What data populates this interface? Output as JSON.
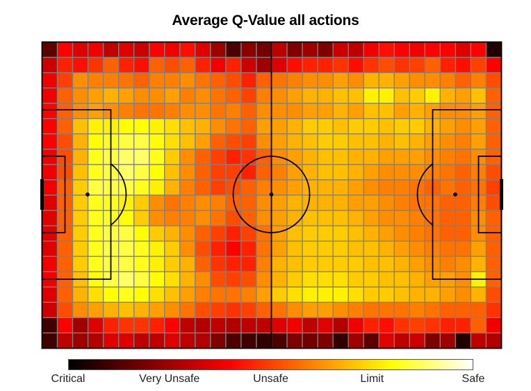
{
  "chart_data": {
    "type": "heatmap",
    "title": "Average Q-Value all actions",
    "grid": {
      "rows": 20,
      "cols": 30
    },
    "value_range": [
      0,
      1
    ],
    "colormap": [
      "#000000",
      "#7f0000",
      "#ff0000",
      "#ff8000",
      "#ffff00",
      "#ffffff"
    ],
    "colorbar_labels": [
      "Critical",
      "Very Unsafe",
      "Unsafe",
      "Limit",
      "Safe"
    ],
    "colorbar_ticks": [
      0,
      0.25,
      0.5,
      0.75,
      1
    ],
    "values": [
      [
        0.15,
        0.4,
        0.35,
        0.38,
        0.3,
        0.35,
        0.32,
        0.4,
        0.38,
        0.42,
        0.35,
        0.25,
        0.12,
        0.22,
        0.18,
        0.3,
        0.2,
        0.25,
        0.2,
        0.32,
        0.3,
        0.38,
        0.42,
        0.4,
        0.38,
        0.4,
        0.4,
        0.35,
        0.4,
        0.05
      ],
      [
        0.32,
        0.45,
        0.42,
        0.48,
        0.55,
        0.45,
        0.42,
        0.55,
        0.52,
        0.55,
        0.45,
        0.38,
        0.45,
        0.32,
        0.25,
        0.35,
        0.42,
        0.45,
        0.45,
        0.48,
        0.42,
        0.48,
        0.52,
        0.48,
        0.5,
        0.55,
        0.45,
        0.42,
        0.5,
        0.4
      ],
      [
        0.38,
        0.5,
        0.62,
        0.6,
        0.6,
        0.58,
        0.55,
        0.6,
        0.6,
        0.62,
        0.58,
        0.55,
        0.52,
        0.45,
        0.55,
        0.58,
        0.6,
        0.62,
        0.62,
        0.65,
        0.62,
        0.68,
        0.68,
        0.65,
        0.62,
        0.62,
        0.6,
        0.55,
        0.6,
        0.52
      ],
      [
        0.38,
        0.55,
        0.62,
        0.65,
        0.68,
        0.65,
        0.62,
        0.62,
        0.65,
        0.6,
        0.62,
        0.58,
        0.55,
        0.5,
        0.6,
        0.62,
        0.65,
        0.68,
        0.68,
        0.7,
        0.7,
        0.78,
        0.78,
        0.7,
        0.72,
        0.78,
        0.68,
        0.65,
        0.7,
        0.55
      ],
      [
        0.4,
        0.55,
        0.62,
        0.65,
        0.62,
        0.6,
        0.58,
        0.58,
        0.6,
        0.62,
        0.62,
        0.58,
        0.6,
        0.55,
        0.62,
        0.62,
        0.62,
        0.65,
        0.65,
        0.68,
        0.65,
        0.7,
        0.7,
        0.65,
        0.68,
        0.65,
        0.62,
        0.62,
        0.65,
        0.55
      ],
      [
        0.4,
        0.55,
        0.7,
        0.78,
        0.78,
        0.8,
        0.8,
        0.78,
        0.75,
        0.7,
        0.68,
        0.62,
        0.58,
        0.55,
        0.65,
        0.65,
        0.68,
        0.72,
        0.72,
        0.7,
        0.72,
        0.72,
        0.7,
        0.72,
        0.72,
        0.68,
        0.65,
        0.62,
        0.65,
        0.55
      ],
      [
        0.4,
        0.52,
        0.68,
        0.8,
        0.82,
        0.85,
        0.85,
        0.8,
        0.75,
        0.7,
        0.65,
        0.55,
        0.52,
        0.5,
        0.62,
        0.65,
        0.68,
        0.7,
        0.72,
        0.72,
        0.7,
        0.7,
        0.68,
        0.7,
        0.68,
        0.65,
        0.62,
        0.6,
        0.65,
        0.55
      ],
      [
        0.38,
        0.52,
        0.68,
        0.82,
        0.85,
        0.88,
        0.88,
        0.82,
        0.72,
        0.62,
        0.55,
        0.5,
        0.45,
        0.48,
        0.55,
        0.62,
        0.65,
        0.68,
        0.7,
        0.7,
        0.68,
        0.68,
        0.65,
        0.65,
        0.65,
        0.62,
        0.6,
        0.58,
        0.62,
        0.55
      ],
      [
        0.38,
        0.52,
        0.7,
        0.82,
        0.85,
        0.88,
        0.85,
        0.8,
        0.7,
        0.62,
        0.55,
        0.5,
        0.5,
        0.45,
        0.55,
        0.6,
        0.65,
        0.68,
        0.7,
        0.7,
        0.68,
        0.65,
        0.62,
        0.62,
        0.62,
        0.6,
        0.58,
        0.55,
        0.6,
        0.52
      ],
      [
        0.38,
        0.55,
        0.72,
        0.85,
        0.85,
        0.85,
        0.82,
        0.78,
        0.68,
        0.6,
        0.55,
        0.5,
        0.52,
        0.55,
        0.6,
        0.62,
        0.65,
        0.68,
        0.68,
        0.68,
        0.65,
        0.62,
        0.6,
        0.6,
        0.58,
        0.55,
        0.58,
        0.55,
        0.58,
        0.5
      ],
      [
        0.35,
        0.55,
        0.72,
        0.82,
        0.82,
        0.78,
        0.72,
        0.62,
        0.58,
        0.6,
        0.62,
        0.6,
        0.55,
        0.55,
        0.62,
        0.65,
        0.68,
        0.68,
        0.68,
        0.68,
        0.65,
        0.65,
        0.62,
        0.6,
        0.58,
        0.58,
        0.55,
        0.55,
        0.6,
        0.52
      ],
      [
        0.35,
        0.55,
        0.72,
        0.82,
        0.82,
        0.8,
        0.72,
        0.62,
        0.6,
        0.6,
        0.62,
        0.58,
        0.52,
        0.55,
        0.62,
        0.65,
        0.68,
        0.7,
        0.7,
        0.7,
        0.68,
        0.65,
        0.62,
        0.62,
        0.6,
        0.58,
        0.55,
        0.55,
        0.62,
        0.55
      ],
      [
        0.35,
        0.55,
        0.72,
        0.82,
        0.85,
        0.85,
        0.8,
        0.72,
        0.68,
        0.62,
        0.55,
        0.5,
        0.45,
        0.5,
        0.58,
        0.65,
        0.7,
        0.72,
        0.72,
        0.72,
        0.7,
        0.68,
        0.65,
        0.62,
        0.6,
        0.58,
        0.55,
        0.55,
        0.62,
        0.55
      ],
      [
        0.35,
        0.55,
        0.72,
        0.82,
        0.85,
        0.85,
        0.82,
        0.78,
        0.72,
        0.62,
        0.52,
        0.45,
        0.4,
        0.45,
        0.58,
        0.65,
        0.7,
        0.72,
        0.72,
        0.72,
        0.7,
        0.7,
        0.68,
        0.65,
        0.62,
        0.6,
        0.58,
        0.58,
        0.65,
        0.55
      ],
      [
        0.38,
        0.55,
        0.72,
        0.82,
        0.85,
        0.85,
        0.82,
        0.78,
        0.72,
        0.68,
        0.55,
        0.48,
        0.45,
        0.45,
        0.6,
        0.68,
        0.7,
        0.72,
        0.72,
        0.72,
        0.72,
        0.7,
        0.7,
        0.68,
        0.65,
        0.62,
        0.6,
        0.62,
        0.68,
        0.55
      ],
      [
        0.38,
        0.55,
        0.7,
        0.8,
        0.85,
        0.88,
        0.85,
        0.8,
        0.75,
        0.68,
        0.62,
        0.52,
        0.5,
        0.52,
        0.62,
        0.68,
        0.72,
        0.75,
        0.75,
        0.75,
        0.72,
        0.72,
        0.7,
        0.7,
        0.68,
        0.65,
        0.65,
        0.62,
        0.78,
        0.55
      ],
      [
        0.35,
        0.55,
        0.68,
        0.75,
        0.8,
        0.82,
        0.8,
        0.75,
        0.7,
        0.65,
        0.6,
        0.58,
        0.58,
        0.6,
        0.65,
        0.72,
        0.75,
        0.78,
        0.78,
        0.78,
        0.75,
        0.72,
        0.72,
        0.7,
        0.68,
        0.68,
        0.65,
        0.62,
        0.68,
        0.52
      ],
      [
        0.32,
        0.52,
        0.62,
        0.65,
        0.68,
        0.7,
        0.68,
        0.65,
        0.62,
        0.58,
        0.52,
        0.5,
        0.48,
        0.5,
        0.55,
        0.58,
        0.62,
        0.65,
        0.65,
        0.62,
        0.6,
        0.58,
        0.58,
        0.58,
        0.6,
        0.58,
        0.55,
        0.55,
        0.55,
        0.48
      ],
      [
        0.1,
        0.4,
        0.25,
        0.35,
        0.45,
        0.48,
        0.48,
        0.45,
        0.4,
        0.3,
        0.28,
        0.3,
        0.28,
        0.3,
        0.3,
        0.35,
        0.38,
        0.3,
        0.35,
        0.28,
        0.38,
        0.45,
        0.42,
        0.48,
        0.5,
        0.48,
        0.45,
        0.45,
        0.55,
        0.38
      ],
      [
        0.1,
        0.3,
        0.25,
        0.28,
        0.35,
        0.35,
        0.3,
        0.3,
        0.35,
        0.3,
        0.28,
        0.2,
        0.12,
        0.1,
        0.08,
        0.12,
        0.2,
        0.18,
        0.2,
        0.08,
        0.25,
        0.15,
        0.35,
        0.3,
        0.32,
        0.2,
        0.25,
        0.05,
        0.3,
        0.28
      ]
    ]
  }
}
